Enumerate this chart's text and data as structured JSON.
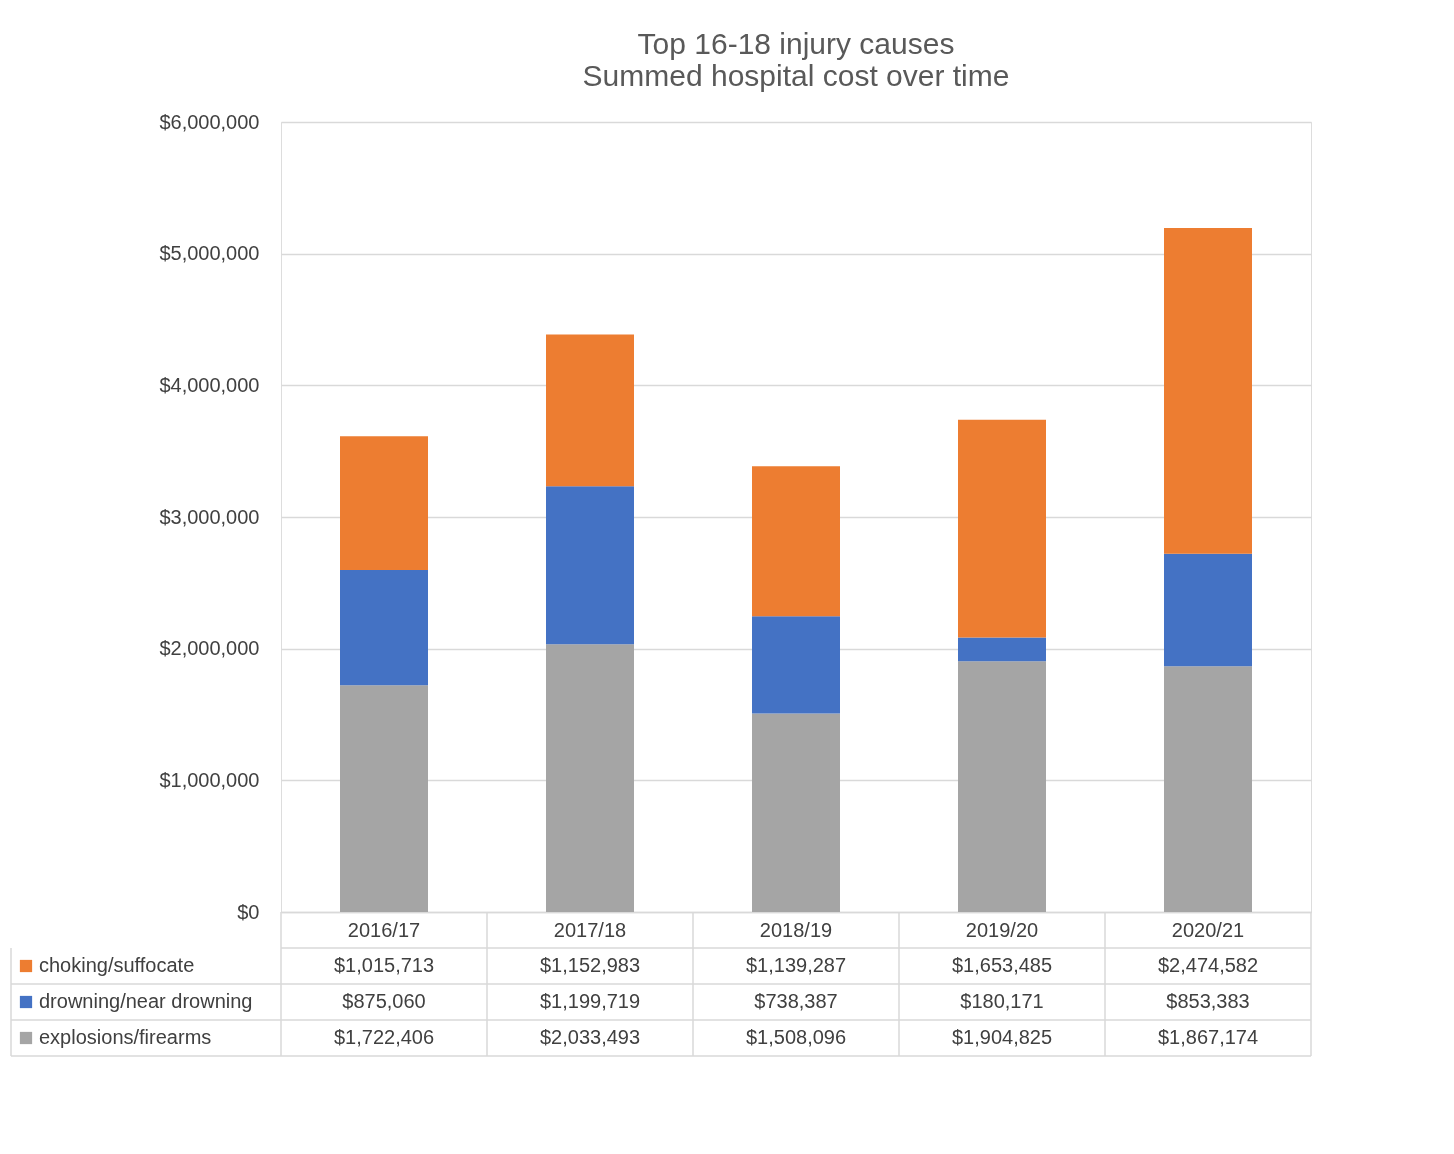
{
  "chart_data": {
    "type": "bar",
    "stacked": true,
    "title": [
      "Top 16-18 injury causes",
      "Summed hospital cost over time"
    ],
    "categories": [
      "2016/17",
      "2017/18",
      "2018/19",
      "2019/20",
      "2020/21"
    ],
    "series": [
      {
        "name": "explosions/firearms",
        "color": "#a5a5a5",
        "values": [
          1722406,
          2033493,
          1508096,
          1904825,
          1867174
        ],
        "value_labels": [
          "$1,722,406",
          "$2,033,493",
          "$1,508,096",
          "$1,904,825",
          "$1,867,174"
        ]
      },
      {
        "name": "drowning/near drowning",
        "color": "#4472c4",
        "values": [
          875060,
          1199719,
          738387,
          180171,
          853383
        ],
        "value_labels": [
          "$875,060",
          "$1,199,719",
          "$738,387",
          "$180,171",
          "$853,383"
        ]
      },
      {
        "name": "choking/suffocate",
        "color": "#ed7d31",
        "values": [
          1015713,
          1152983,
          1139287,
          1653485,
          2474582
        ],
        "value_labels": [
          "$1,015,713",
          "$1,152,983",
          "$1,139,287",
          "$1,653,485",
          "$2,474,582"
        ]
      }
    ],
    "ylim": [
      0,
      6000000
    ],
    "yticks": [
      {
        "value": 0,
        "label": "$0"
      },
      {
        "value": 1000000,
        "label": "$1,000,000"
      },
      {
        "value": 2000000,
        "label": "$2,000,000"
      },
      {
        "value": 3000000,
        "label": "$3,000,000"
      },
      {
        "value": 4000000,
        "label": "$4,000,000"
      },
      {
        "value": 5000000,
        "label": "$5,000,000"
      },
      {
        "value": 6000000,
        "label": "$6,000,000"
      }
    ],
    "grid": "y",
    "legend": "bottom"
  }
}
